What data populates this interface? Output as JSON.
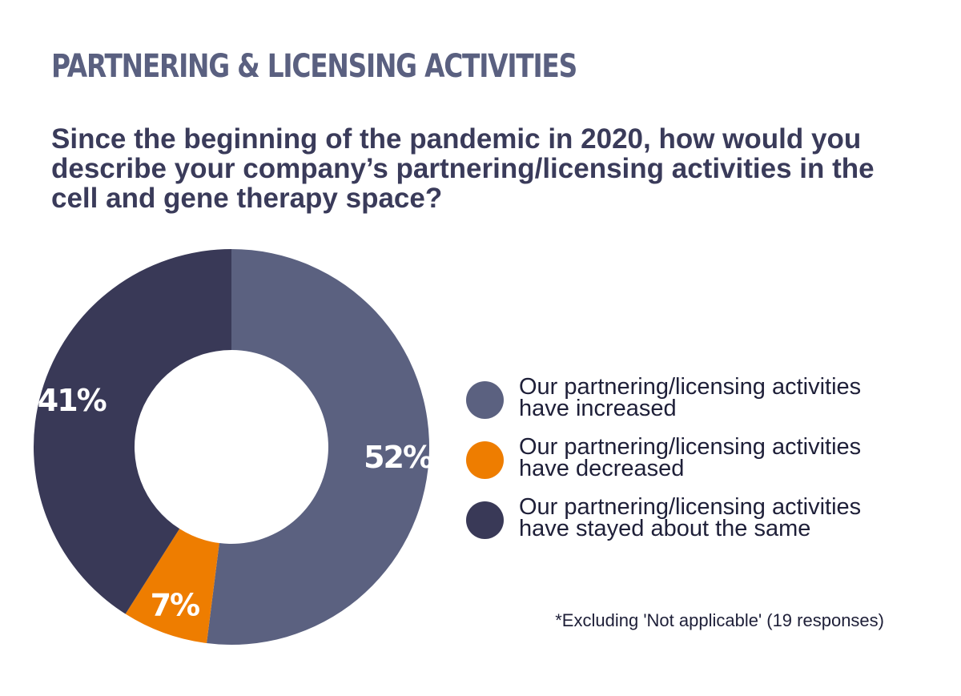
{
  "header": {
    "title": "PARTNERING & LICENSING ACTIVITIES",
    "question": "Since the beginning of the pandemic in 2020, how would you describe your company’s partnering/licensing activities in the cell and gene therapy space?"
  },
  "chart_data": {
    "type": "pie",
    "donut": true,
    "categories": [
      "Our partnering/licensing activities have increased",
      "Our partnering/licensing activities have decreased",
      "Our partnering/licensing activities have stayed about the same"
    ],
    "values": [
      52,
      7,
      41
    ],
    "labels": [
      "52%",
      "7%",
      "41%"
    ],
    "colors": [
      "#5b6180",
      "#ee7d00",
      "#393957"
    ],
    "legend": "right"
  },
  "legend": {
    "items": [
      {
        "label": "Our partnering/licensing activities have increased",
        "color": "#5b6180"
      },
      {
        "label": "Our partnering/licensing activities have decreased",
        "color": "#ee7d00"
      },
      {
        "label": "Our partnering/licensing activities have stayed about the same",
        "color": "#393957"
      }
    ]
  },
  "footnote": "*Excluding 'Not applicable' (19 responses)"
}
